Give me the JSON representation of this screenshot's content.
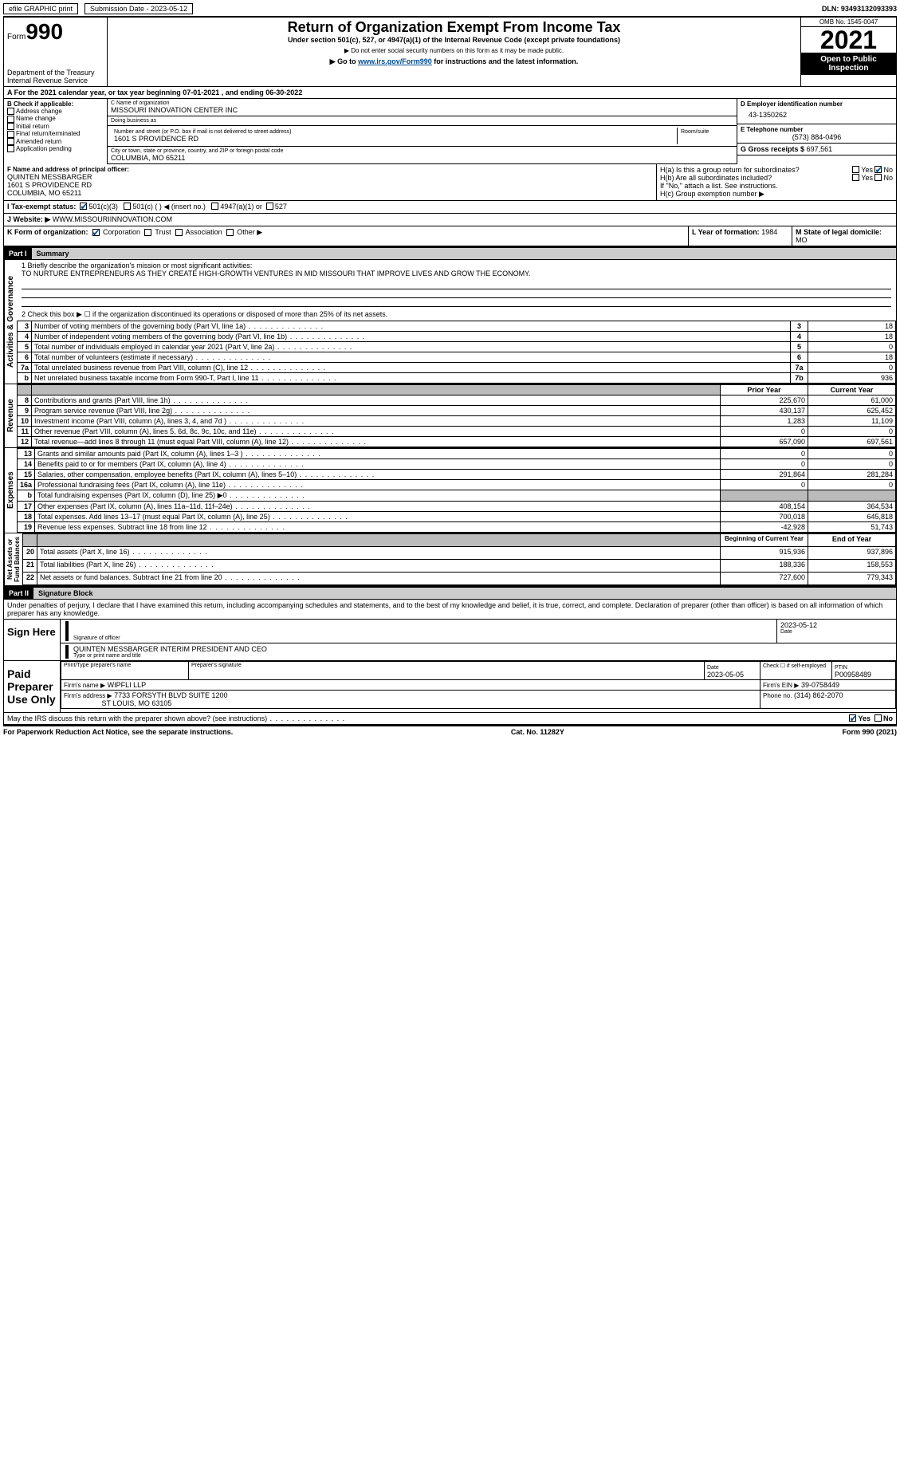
{
  "topbar": {
    "efile": "efile GRAPHIC print",
    "submission": "Submission Date - 2023-05-12",
    "dln": "DLN: 93493132093393"
  },
  "header": {
    "form_label": "Form",
    "form_no": "990",
    "title": "Return of Organization Exempt From Income Tax",
    "subtitle": "Under section 501(c), 527, or 4947(a)(1) of the Internal Revenue Code (except private foundations)",
    "note1": "▶ Do not enter social security numbers on this form as it may be made public.",
    "note2_prefix": "▶ Go to ",
    "note2_link": "www.irs.gov/Form990",
    "note2_suffix": " for instructions and the latest information.",
    "dept": "Department of the Treasury\nInternal Revenue Service",
    "omb": "OMB No. 1545-0047",
    "year": "2021",
    "open": "Open to Public Inspection"
  },
  "A": {
    "text": "A For the 2021 calendar year, or tax year beginning 07-01-2021    , and ending 06-30-2022"
  },
  "B": {
    "label": "B Check if applicable:",
    "items": [
      "Address change",
      "Name change",
      "Initial return",
      "Final return/terminated",
      "Amended return",
      "Application pending"
    ]
  },
  "C": {
    "name_label": "C Name of organization",
    "name": "MISSOURI INNOVATION CENTER INC",
    "dba_label": "Doing business as",
    "dba": "",
    "street_label": "Number and street (or P.O. box if mail is not delivered to street address)",
    "room_label": "Room/suite",
    "street": "1601 S PROVIDENCE RD",
    "city_label": "City or town, state or province, country, and ZIP or foreign postal code",
    "city": "COLUMBIA, MO  65211"
  },
  "D": {
    "label": "D Employer identification number",
    "val": "43-1350262"
  },
  "E": {
    "label": "E Telephone number",
    "val": "(573) 884-0496"
  },
  "G": {
    "label": "G Gross receipts $",
    "val": "697,561"
  },
  "F": {
    "label": "F Name and address of principal officer:",
    "name": "QUINTEN MESSBARGER",
    "addr1": "1601 S PROVIDENCE RD",
    "addr2": "COLUMBIA, MO  65211"
  },
  "H": {
    "a_label": "H(a)  Is this a group return for subordinates?",
    "b_label": "H(b)  Are all subordinates included?",
    "b_note": "If \"No,\" attach a list. See instructions.",
    "c_label": "H(c)  Group exemption number ▶",
    "yes": "Yes",
    "no": "No"
  },
  "I": {
    "label": "I    Tax-exempt status:",
    "opts": [
      "501(c)(3)",
      "501(c) (  ) ◀ (insert no.)",
      "4947(a)(1) or",
      "527"
    ]
  },
  "J": {
    "label": "J   Website: ▶",
    "val": "WWW.MISSOURIINNOVATION.COM"
  },
  "K": {
    "label": "K Form of organization:",
    "opts": [
      "Corporation",
      "Trust",
      "Association",
      "Other ▶"
    ]
  },
  "L": {
    "label": "L Year of formation:",
    "val": "1984"
  },
  "M": {
    "label": "M State of legal domicile:",
    "val": "MO"
  },
  "part1": {
    "num": "Part I",
    "title": "Summary"
  },
  "summary": {
    "line1_label": "1  Briefly describe the organization's mission or most significant activities:",
    "line1_text": "TO NURTURE ENTREPRENEURS AS THEY CREATE HIGH-GROWTH VENTURES IN MID MISSOURI THAT IMPROVE LIVES AND GROW THE ECONOMY.",
    "line2": "2   Check this box ▶ ☐  if the organization discontinued its operations or disposed of more than 25% of its net assets.",
    "rows_gov": [
      {
        "n": "3",
        "t": "Number of voting members of the governing body (Part VI, line 1a)",
        "box": "3",
        "v": "18"
      },
      {
        "n": "4",
        "t": "Number of independent voting members of the governing body (Part VI, line 1b)",
        "box": "4",
        "v": "18"
      },
      {
        "n": "5",
        "t": "Total number of individuals employed in calendar year 2021 (Part V, line 2a)",
        "box": "5",
        "v": "0"
      },
      {
        "n": "6",
        "t": "Total number of volunteers (estimate if necessary)",
        "box": "6",
        "v": "18"
      },
      {
        "n": "7a",
        "t": "Total unrelated business revenue from Part VIII, column (C), line 12",
        "box": "7a",
        "v": "0"
      },
      {
        "n": "b",
        "t": "Net unrelated business taxable income from Form 990-T, Part I, line 11",
        "box": "7b",
        "v": "936"
      }
    ],
    "col_prior": "Prior Year",
    "col_curr": "Current Year",
    "rows_rev": [
      {
        "n": "8",
        "t": "Contributions and grants (Part VIII, line 1h)",
        "p": "225,670",
        "c": "61,000"
      },
      {
        "n": "9",
        "t": "Program service revenue (Part VIII, line 2g)",
        "p": "430,137",
        "c": "625,452"
      },
      {
        "n": "10",
        "t": "Investment income (Part VIII, column (A), lines 3, 4, and 7d )",
        "p": "1,283",
        "c": "11,109"
      },
      {
        "n": "11",
        "t": "Other revenue (Part VIII, column (A), lines 5, 6d, 8c, 9c, 10c, and 11e)",
        "p": "0",
        "c": "0"
      },
      {
        "n": "12",
        "t": "Total revenue—add lines 8 through 11 (must equal Part VIII, column (A), line 12)",
        "p": "657,090",
        "c": "697,561"
      }
    ],
    "rows_exp": [
      {
        "n": "13",
        "t": "Grants and similar amounts paid (Part IX, column (A), lines 1–3 )",
        "p": "0",
        "c": "0"
      },
      {
        "n": "14",
        "t": "Benefits paid to or for members (Part IX, column (A), line 4)",
        "p": "0",
        "c": "0"
      },
      {
        "n": "15",
        "t": "Salaries, other compensation, employee benefits (Part IX, column (A), lines 5–10)",
        "p": "291,864",
        "c": "281,284"
      },
      {
        "n": "16a",
        "t": "Professional fundraising fees (Part IX, column (A), line 11e)",
        "p": "0",
        "c": "0"
      },
      {
        "n": "b",
        "t": "Total fundraising expenses (Part IX, column (D), line 25) ▶0",
        "p": "shade",
        "c": "shade"
      },
      {
        "n": "17",
        "t": "Other expenses (Part IX, column (A), lines 11a–11d, 11f–24e)",
        "p": "408,154",
        "c": "364,534"
      },
      {
        "n": "18",
        "t": "Total expenses. Add lines 13–17 (must equal Part IX, column (A), line 25)",
        "p": "700,018",
        "c": "645,818"
      },
      {
        "n": "19",
        "t": "Revenue less expenses. Subtract line 18 from line 12",
        "p": "-42,928",
        "c": "51,743"
      }
    ],
    "col_begin": "Beginning of Current Year",
    "col_end": "End of Year",
    "rows_net": [
      {
        "n": "20",
        "t": "Total assets (Part X, line 16)",
        "p": "915,936",
        "c": "937,896"
      },
      {
        "n": "21",
        "t": "Total liabilities (Part X, line 26)",
        "p": "188,336",
        "c": "158,553"
      },
      {
        "n": "22",
        "t": "Net assets or fund balances. Subtract line 21 from line 20",
        "p": "727,600",
        "c": "779,343"
      }
    ]
  },
  "part2": {
    "num": "Part II",
    "title": "Signature Block"
  },
  "sig": {
    "perjury": "Under penalties of perjury, I declare that I have examined this return, including accompanying schedules and statements, and to the best of my knowledge and belief, it is true, correct, and complete. Declaration of preparer (other than officer) is based on all information of which preparer has any knowledge.",
    "sign_here": "Sign Here",
    "sig_officer": "Signature of officer",
    "date_val": "2023-05-12",
    "date_label": "Date",
    "name_val": "QUINTEN MESSBARGER  INTERIM PRESIDENT AND CEO",
    "name_label": "Type or print name and title",
    "paid": "Paid Preparer Use Only",
    "prep_name_label": "Print/Type preparer's name",
    "prep_sig_label": "Preparer's signature",
    "prep_date_label": "Date",
    "prep_date": "2023-05-05",
    "self_emp": "Check ☐ if self-employed",
    "ptin_label": "PTIN",
    "ptin": "P00958489",
    "firm_name_label": "Firm's name    ▶",
    "firm_name": "WIPFLI LLP",
    "firm_ein_label": "Firm's EIN ▶",
    "firm_ein": "39-0758449",
    "firm_addr_label": "Firm's address ▶",
    "firm_addr1": "7733 FORSYTH BLVD SUITE 1200",
    "firm_addr2": "ST LOUIS, MO  63105",
    "phone_label": "Phone no.",
    "phone": "(314) 862-2070",
    "discuss": "May the IRS discuss this return with the preparer shown above? (see instructions)"
  },
  "footer": {
    "left": "For Paperwork Reduction Act Notice, see the separate instructions.",
    "mid": "Cat. No. 11282Y",
    "right": "Form 990 (2021)"
  }
}
